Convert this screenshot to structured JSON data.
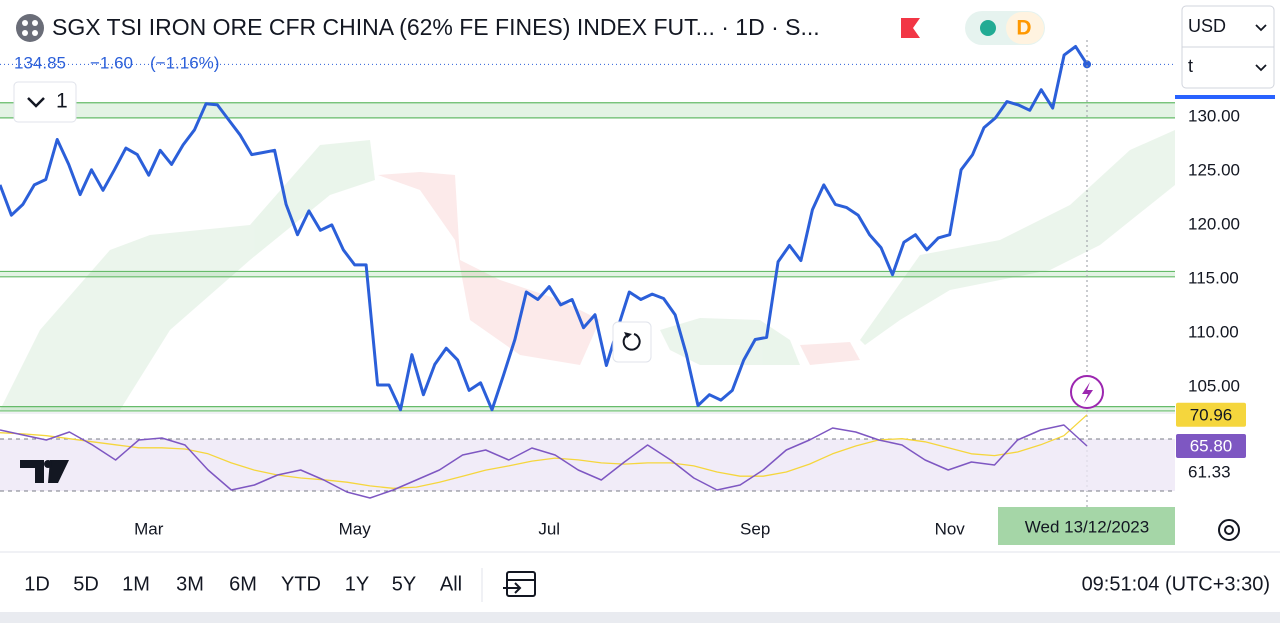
{
  "header": {
    "title": "SGX TSI IRON ORE CFR CHINA (62% FE FINES) INDEX FUT... · 1D · S...",
    "price": "134.85",
    "change": "−1.60",
    "change_pct": "(−1.16%)",
    "indicator_count": "1",
    "badge": "D"
  },
  "currency": "USD",
  "unit": "t",
  "crosshair_label": "Wed 13/12/2023",
  "toolbar": {
    "ranges": [
      "1D",
      "5D",
      "1M",
      "3M",
      "6M",
      "YTD",
      "1Y",
      "5Y",
      "All"
    ],
    "clock": "09:51:04 (UTC+3:30)"
  },
  "chart_data": [
    {
      "type": "line",
      "categories": [
        null,
        null,
        null,
        null,
        null,
        null,
        null,
        null,
        null,
        null,
        null,
        null,
        null,
        "Mar",
        null,
        null,
        null,
        null,
        null,
        null,
        null,
        null,
        null,
        null,
        null,
        null,
        null,
        null,
        null,
        null,
        null,
        "May",
        null,
        null,
        null,
        null,
        null,
        null,
        null,
        null,
        null,
        null,
        null,
        null,
        null,
        null,
        null,
        null,
        "Jul",
        null,
        null,
        null,
        null,
        null,
        null,
        null,
        null,
        null,
        null,
        null,
        null,
        null,
        null,
        null,
        null,
        null,
        "Sep",
        null,
        null,
        null,
        null,
        null,
        null,
        null,
        null,
        null,
        null,
        null,
        null,
        null,
        null,
        null,
        null,
        "Nov",
        null,
        null,
        null,
        null,
        null,
        null,
        null,
        null,
        null,
        null,
        null,
        null
      ],
      "series": [
        {
          "color": "#2b5fd9",
          "values": [
            123.7,
            120.9,
            121.9,
            123.7,
            124.2,
            127.9,
            125.6,
            122.8,
            125.1,
            123.2,
            125.1,
            127.1,
            126.5,
            124.6,
            126.9,
            125.6,
            127.4,
            128.8,
            131.2,
            131.1,
            129.7,
            128.3,
            126.5,
            126.7,
            126.9,
            121.9,
            119.1,
            121.3,
            119.5,
            120.0,
            117.7,
            116.3,
            116.3,
            105.2,
            105.2,
            102.9,
            108.0,
            104.3,
            107.1,
            108.6,
            107.5,
            104.7,
            105.4,
            102.9,
            106.1,
            109.4,
            113.8,
            113.1,
            114.3,
            112.6,
            113.1,
            110.5,
            111.7,
            107.0,
            110.5,
            113.8,
            113.1,
            113.6,
            113.2,
            111.7,
            108.0,
            103.3,
            104.3,
            103.8,
            104.7,
            107.5,
            109.4,
            109.6,
            116.6,
            118.1,
            116.7,
            121.4,
            123.7,
            121.9,
            121.6,
            120.9,
            119.1,
            117.9,
            115.4,
            118.4,
            119.1,
            117.7,
            118.8,
            119.1,
            125.1,
            126.5,
            129.0,
            129.9,
            131.4,
            131.1,
            130.6,
            132.5,
            130.8,
            135.7,
            136.5,
            134.85
          ]
        }
      ],
      "ylim": [
        102.7,
        137.1
      ],
      "yticks": [
        {
          "value": 130,
          "label": "130.00"
        },
        {
          "value": 125,
          "label": "125.00"
        },
        {
          "value": 120,
          "label": "120.00"
        },
        {
          "value": 115,
          "label": "115.00"
        },
        {
          "value": 110,
          "label": "110.00"
        },
        {
          "value": 105,
          "label": "105.00"
        }
      ],
      "zones": [
        [
          129.9,
          131.3
        ],
        [
          115.2,
          115.7
        ],
        [
          102.8,
          103.2
        ]
      ],
      "zone_color": "#66bb6a"
    },
    {
      "type": "line",
      "series": [
        {
          "color": "#7e57c2",
          "values": [
            68.45,
            67.62,
            66.79,
            68.12,
            65.97,
            63.48,
            66.79,
            67.12,
            65.97,
            61.83,
            58.52,
            59.34,
            61.0,
            61.83,
            60.17,
            58.18,
            57.19,
            58.52,
            60.17,
            61.83,
            64.31,
            65.14,
            63.48,
            65.47,
            64.31,
            61.83,
            60.17,
            63.15,
            65.97,
            63.48,
            60.5,
            58.52,
            59.34,
            61.83,
            65.14,
            66.79,
            68.78,
            68.12,
            66.79,
            65.97,
            63.48,
            61.83,
            63.15,
            62.65,
            66.79,
            68.45,
            69.28,
            65.8
          ],
          "last_label": "65.80"
        },
        {
          "color": "#f5d63d",
          "values": [
            68,
            67.8,
            67.5,
            67,
            66.5,
            66,
            65.5,
            65.5,
            65.3,
            64.5,
            63,
            61.8,
            61,
            60.5,
            60.2,
            59.8,
            59.2,
            58.8,
            59,
            59.8,
            60.8,
            61.8,
            62.5,
            63.3,
            63.8,
            63.5,
            63,
            62.8,
            63,
            63,
            62.5,
            61.5,
            60.8,
            60.8,
            61.5,
            62.8,
            64.5,
            65.8,
            66.8,
            67,
            66.5,
            65.5,
            64.5,
            64.2,
            64.8,
            66,
            67.5,
            70.96
          ],
          "last_label": "70.96"
        }
      ],
      "ylim": [
        56.03,
        71.26
      ],
      "yticks": [
        61.33
      ],
      "bands": [
        66.96,
        58.35
      ],
      "band_color": "#ede7f6"
    }
  ]
}
